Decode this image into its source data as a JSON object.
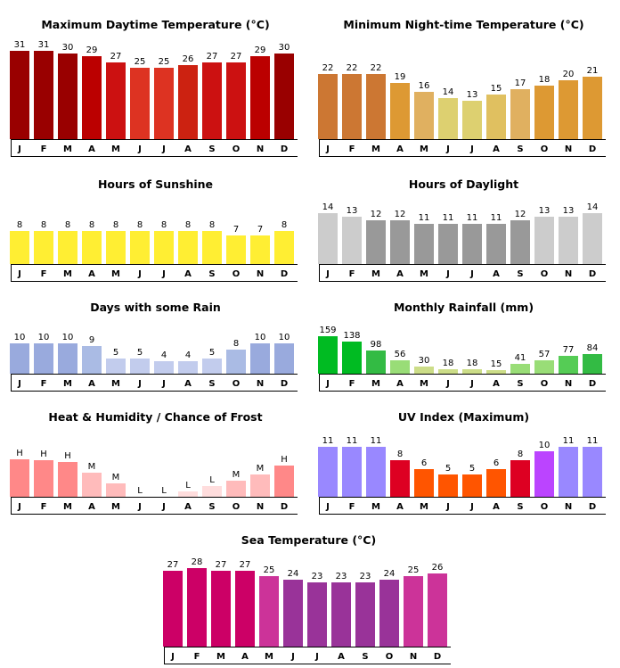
{
  "months": [
    "J",
    "F",
    "M",
    "A",
    "M",
    "J",
    "J",
    "A",
    "S",
    "O",
    "N",
    "D"
  ],
  "chart_data": [
    {
      "id": "max-daytime-temp",
      "type": "bar",
      "title": "Maximum Daytime Temperature (°C)",
      "categories": [
        "J",
        "F",
        "M",
        "A",
        "M",
        "J",
        "J",
        "A",
        "S",
        "O",
        "N",
        "D"
      ],
      "values": [
        31,
        31,
        30,
        29,
        27,
        25,
        25,
        26,
        27,
        27,
        29,
        30
      ],
      "ylim": [
        0,
        31
      ],
      "colors": [
        "#990000",
        "#990000",
        "#990000",
        "#bb0000",
        "#cc1111",
        "#dd3322",
        "#dd3322",
        "#cc2211",
        "#cc1111",
        "#cc1111",
        "#bb0000",
        "#990000"
      ]
    },
    {
      "id": "min-night-temp",
      "type": "bar",
      "title": "Minimum Night-time Temperature (°C)",
      "categories": [
        "J",
        "F",
        "M",
        "A",
        "M",
        "J",
        "J",
        "A",
        "S",
        "O",
        "N",
        "D"
      ],
      "values": [
        22,
        22,
        22,
        19,
        16,
        14,
        13,
        15,
        17,
        18,
        20,
        21
      ],
      "ylim": [
        0,
        22
      ],
      "colors": [
        "#cc7733",
        "#cc7733",
        "#cc7733",
        "#dd9933",
        "#e0b060",
        "#ddd070",
        "#ddd070",
        "#e0c060",
        "#e0b060",
        "#dd9933",
        "#dd9933",
        "#dd9933"
      ]
    },
    {
      "id": "hours-sunshine",
      "type": "bar",
      "title": "Hours of Sunshine",
      "categories": [
        "J",
        "F",
        "M",
        "A",
        "M",
        "J",
        "J",
        "A",
        "S",
        "O",
        "N",
        "D"
      ],
      "values": [
        8,
        8,
        8,
        8,
        8,
        8,
        8,
        8,
        8,
        7,
        7,
        8
      ],
      "ylim": [
        0,
        8
      ],
      "colors": [
        "#ffee33",
        "#ffee33",
        "#ffee33",
        "#ffee33",
        "#ffee33",
        "#ffee33",
        "#ffee33",
        "#ffee33",
        "#ffee33",
        "#ffee33",
        "#ffee33",
        "#ffee33"
      ]
    },
    {
      "id": "hours-daylight",
      "type": "bar",
      "title": "Hours of Daylight",
      "categories": [
        "J",
        "F",
        "M",
        "A",
        "M",
        "J",
        "J",
        "A",
        "S",
        "O",
        "N",
        "D"
      ],
      "values": [
        14,
        13,
        12,
        12,
        11,
        11,
        11,
        11,
        12,
        13,
        13,
        14
      ],
      "ylim": [
        0,
        14
      ],
      "colors": [
        "#cccccc",
        "#cccccc",
        "#999999",
        "#999999",
        "#999999",
        "#999999",
        "#999999",
        "#999999",
        "#999999",
        "#cccccc",
        "#cccccc",
        "#cccccc"
      ]
    },
    {
      "id": "days-rain",
      "type": "bar",
      "title": "Days with some Rain",
      "categories": [
        "J",
        "F",
        "M",
        "A",
        "M",
        "J",
        "J",
        "A",
        "S",
        "O",
        "N",
        "D"
      ],
      "values": [
        10,
        10,
        10,
        9,
        5,
        5,
        4,
        4,
        5,
        8,
        10,
        10
      ],
      "ylim": [
        0,
        10
      ],
      "colors": [
        "#99aadd",
        "#99aadd",
        "#99aadd",
        "#aabbe4",
        "#c2cced",
        "#c2cced",
        "#c2cced",
        "#c2cced",
        "#c2cced",
        "#aabbe4",
        "#99aadd",
        "#99aadd"
      ]
    },
    {
      "id": "monthly-rainfall",
      "type": "bar",
      "title": "Monthly Rainfall (mm)",
      "categories": [
        "J",
        "F",
        "M",
        "A",
        "M",
        "J",
        "J",
        "A",
        "S",
        "O",
        "N",
        "D"
      ],
      "values": [
        159,
        138,
        98,
        56,
        30,
        18,
        18,
        15,
        41,
        57,
        77,
        84
      ],
      "ylim": [
        0,
        159
      ],
      "colors": [
        "#00bb22",
        "#00bb22",
        "#33bb44",
        "#99dd77",
        "#ccdd88",
        "#ccdd88",
        "#ccdd88",
        "#ccdd88",
        "#99dd77",
        "#99dd77",
        "#55cc55",
        "#33bb44"
      ]
    },
    {
      "id": "heat-humidity",
      "type": "bar",
      "title": "Heat & Humidity / Chance of Frost",
      "categories": [
        "J",
        "F",
        "M",
        "A",
        "M",
        "J",
        "J",
        "A",
        "S",
        "O",
        "N",
        "D"
      ],
      "values": [
        38,
        37,
        35,
        24,
        14,
        0,
        0,
        5,
        11,
        16,
        23,
        32
      ],
      "labels": [
        "H",
        "H",
        "H",
        "M",
        "M",
        "L",
        "L",
        "L",
        "L",
        "M",
        "M",
        "H"
      ],
      "ylim": [
        0,
        38
      ],
      "colors": [
        "#ff8888",
        "#ff8888",
        "#ff8888",
        "#ffbbbb",
        "#ffbbbb",
        "#ffdddd",
        "#ffdddd",
        "#ffdddd",
        "#ffdddd",
        "#ffbbbb",
        "#ffbbbb",
        "#ff8888"
      ]
    },
    {
      "id": "uv-index",
      "type": "bar",
      "title": "UV Index (Maximum)",
      "categories": [
        "J",
        "F",
        "M",
        "A",
        "M",
        "J",
        "J",
        "A",
        "S",
        "O",
        "N",
        "D"
      ],
      "values": [
        11,
        11,
        11,
        8,
        6,
        5,
        5,
        6,
        8,
        10,
        11,
        11
      ],
      "ylim": [
        0,
        11
      ],
      "colors": [
        "#9988ff",
        "#9988ff",
        "#9988ff",
        "#dd0022",
        "#ff5500",
        "#ff5500",
        "#ff5500",
        "#ff5500",
        "#dd0022",
        "#bb44ff",
        "#9988ff",
        "#9988ff"
      ]
    },
    {
      "id": "sea-temp",
      "type": "bar",
      "title": "Sea Temperature (°C)",
      "categories": [
        "J",
        "F",
        "M",
        "A",
        "M",
        "J",
        "J",
        "A",
        "S",
        "O",
        "N",
        "D"
      ],
      "values": [
        27,
        28,
        27,
        27,
        25,
        24,
        23,
        23,
        23,
        24,
        25,
        26
      ],
      "ylim": [
        0,
        28
      ],
      "colors": [
        "#cc0066",
        "#cc0066",
        "#cc0066",
        "#cc0066",
        "#cc3399",
        "#993399",
        "#993399",
        "#993399",
        "#993399",
        "#993399",
        "#cc3399",
        "#cc3399"
      ]
    }
  ]
}
